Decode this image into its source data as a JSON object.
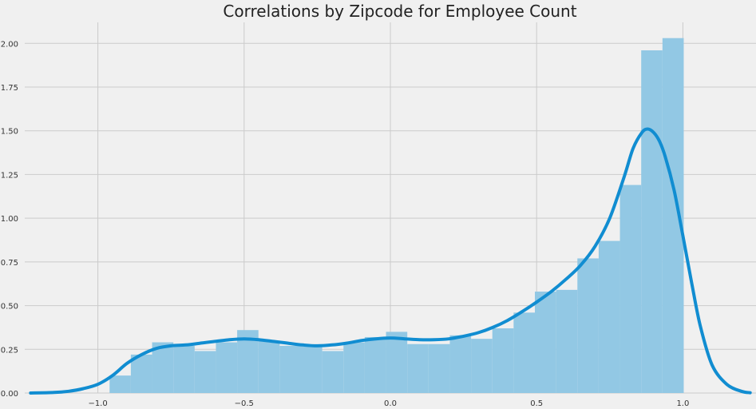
{
  "chart_data": {
    "type": "bar",
    "title": "Correlations by Zipcode for Employee Count",
    "xlabel": "",
    "ylabel": "",
    "xlim": [
      -1.25,
      1.25
    ],
    "ylim": [
      0,
      2.12
    ],
    "grid": true,
    "x_ticks": [
      {
        "value": -1.0,
        "label": "−1.0"
      },
      {
        "value": -0.5,
        "label": "−0.5"
      },
      {
        "value": 0.0,
        "label": "0.0"
      },
      {
        "value": 0.5,
        "label": "0.5"
      },
      {
        "value": 1.0,
        "label": "1.0"
      }
    ],
    "y_ticks": [
      {
        "value": 0.0,
        "label": "0.00"
      },
      {
        "value": 0.25,
        "label": "0.25"
      },
      {
        "value": 0.5,
        "label": "0.50"
      },
      {
        "value": 0.75,
        "label": "0.75"
      },
      {
        "value": 1.0,
        "label": "1.00"
      },
      {
        "value": 1.25,
        "label": "1.25"
      },
      {
        "value": 1.5,
        "label": "1.50"
      },
      {
        "value": 1.75,
        "label": "1.75"
      },
      {
        "value": 2.0,
        "label": "2.00"
      }
    ],
    "histogram": {
      "bin_start": -0.96,
      "bin_width": 0.0727,
      "heights": [
        0.1,
        0.22,
        0.29,
        0.27,
        0.24,
        0.29,
        0.36,
        0.3,
        0.27,
        0.27,
        0.24,
        0.29,
        0.32,
        0.35,
        0.28,
        0.28,
        0.33,
        0.31,
        0.37,
        0.46,
        0.58,
        0.59,
        0.77,
        0.87,
        1.19,
        1.96,
        2.03
      ],
      "color": "#92c8e4"
    },
    "kde": {
      "x": [
        -1.23,
        -1.15,
        -1.1,
        -1.05,
        -1.0,
        -0.95,
        -0.9,
        -0.85,
        -0.8,
        -0.75,
        -0.7,
        -0.65,
        -0.6,
        -0.55,
        -0.5,
        -0.45,
        -0.4,
        -0.35,
        -0.3,
        -0.25,
        -0.2,
        -0.15,
        -0.1,
        -0.05,
        0.0,
        0.05,
        0.1,
        0.15,
        0.2,
        0.25,
        0.3,
        0.35,
        0.4,
        0.45,
        0.5,
        0.55,
        0.6,
        0.65,
        0.7,
        0.75,
        0.8,
        0.83,
        0.86,
        0.88,
        0.9,
        0.92,
        0.94,
        0.97,
        1.0,
        1.03,
        1.06,
        1.1,
        1.15,
        1.2,
        1.23
      ],
      "y": [
        0.0,
        0.003,
        0.01,
        0.025,
        0.05,
        0.1,
        0.17,
        0.22,
        0.255,
        0.27,
        0.275,
        0.285,
        0.295,
        0.305,
        0.31,
        0.305,
        0.295,
        0.285,
        0.275,
        0.27,
        0.275,
        0.285,
        0.3,
        0.31,
        0.315,
        0.31,
        0.305,
        0.305,
        0.31,
        0.325,
        0.345,
        0.375,
        0.415,
        0.465,
        0.52,
        0.58,
        0.65,
        0.73,
        0.84,
        1.0,
        1.24,
        1.4,
        1.49,
        1.51,
        1.49,
        1.44,
        1.35,
        1.16,
        0.9,
        0.63,
        0.38,
        0.16,
        0.05,
        0.01,
        0.002
      ],
      "color": "#118dd1"
    }
  }
}
